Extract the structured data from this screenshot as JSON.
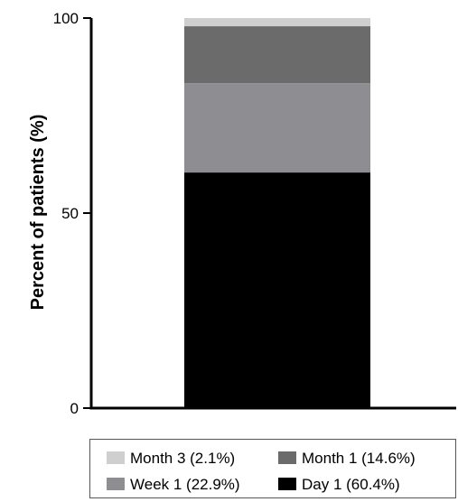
{
  "chart_data": {
    "type": "bar",
    "stacked": true,
    "categories": [
      ""
    ],
    "ylabel": "Percent of patients (%)",
    "xlabel": "",
    "ylim": [
      0,
      100
    ],
    "yticks": [
      "0",
      "50",
      "100"
    ],
    "grid": false,
    "legend_position": "bottom",
    "series": [
      {
        "name": "Day 1 (60.4%)",
        "values": [
          60.4
        ],
        "color": "#000000"
      },
      {
        "name": "Week 1 (22.9%)",
        "values": [
          22.9
        ],
        "color": "#8e8e92"
      },
      {
        "name": "Month 1 (14.6%)",
        "values": [
          14.6
        ],
        "color": "#6b6b6b"
      },
      {
        "name": "Month 3 (2.1%)",
        "values": [
          2.1
        ],
        "color": "#cfcfcf"
      }
    ]
  },
  "legend": {
    "items": [
      {
        "label": "Month 3 (2.1%)",
        "color": "#cfcfcf"
      },
      {
        "label": "Month 1 (14.6%)",
        "color": "#6b6b6b"
      },
      {
        "label": "Week 1 (22.9%)",
        "color": "#8e8e92"
      },
      {
        "label": "Day 1 (60.4%)",
        "color": "#000000"
      }
    ]
  }
}
